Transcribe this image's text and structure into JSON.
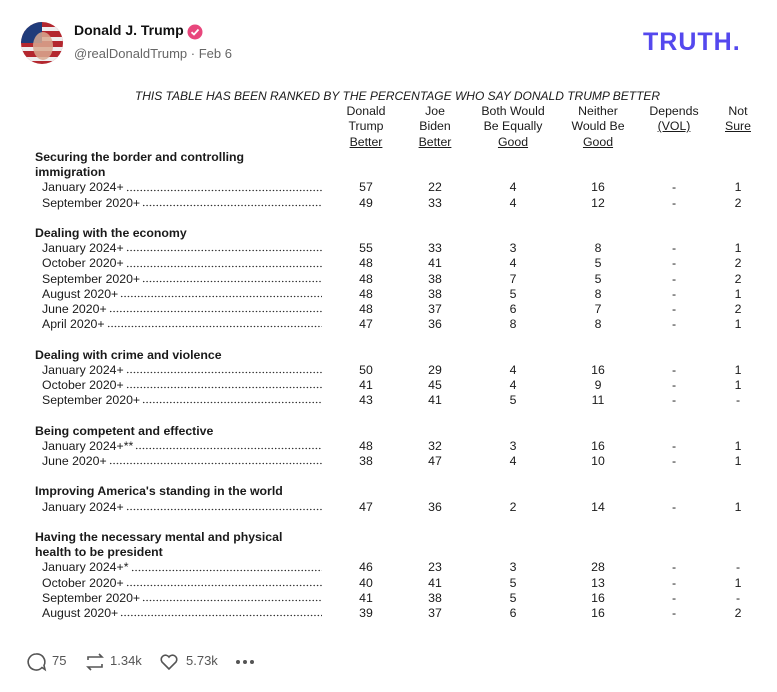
{
  "header": {
    "name": "Donald J. Trump",
    "handle": "@realDonaldTrump",
    "date": "Feb 6",
    "logo": "TRUTH."
  },
  "table": {
    "title": "THIS TABLE HAS BEEN RANKED BY THE PERCENTAGE WHO SAY DONALD TRUMP BETTER",
    "columns": [
      [
        "Donald",
        "Trump",
        "Better"
      ],
      [
        "Joe",
        "Biden",
        "Better"
      ],
      [
        "Both Would",
        "Be Equally",
        "Good"
      ],
      [
        "Neither",
        "Would Be",
        "Good"
      ],
      [
        "Depends",
        "(VOL)"
      ],
      [
        "Not",
        "Sure"
      ]
    ],
    "sections": [
      {
        "title": "Securing the border and controlling immigration",
        "rows": [
          {
            "label": "January 2024+",
            "cells": [
              57,
              22,
              4,
              16,
              "-",
              1
            ]
          },
          {
            "label": "September 2020+",
            "cells": [
              49,
              33,
              4,
              12,
              "-",
              2
            ]
          }
        ]
      },
      {
        "title": "Dealing with the economy",
        "rows": [
          {
            "label": "January 2024+",
            "cells": [
              55,
              33,
              3,
              8,
              "-",
              1
            ]
          },
          {
            "label": "October 2020+",
            "cells": [
              48,
              41,
              4,
              5,
              "-",
              2
            ]
          },
          {
            "label": "September 2020+",
            "cells": [
              48,
              38,
              7,
              5,
              "-",
              2
            ]
          },
          {
            "label": "August 2020+",
            "cells": [
              48,
              38,
              5,
              8,
              "-",
              1
            ]
          },
          {
            "label": "June 2020+",
            "cells": [
              48,
              37,
              6,
              7,
              "-",
              2
            ]
          },
          {
            "label": "April 2020+",
            "cells": [
              47,
              36,
              8,
              8,
              "-",
              1
            ]
          }
        ]
      },
      {
        "title": "Dealing with crime and violence",
        "rows": [
          {
            "label": "January 2024+",
            "cells": [
              50,
              29,
              4,
              16,
              "-",
              1
            ]
          },
          {
            "label": "October 2020+",
            "cells": [
              41,
              45,
              4,
              9,
              "-",
              1
            ]
          },
          {
            "label": "September 2020+",
            "cells": [
              43,
              41,
              5,
              11,
              "-",
              "-"
            ]
          }
        ]
      },
      {
        "title": "Being competent and effective",
        "rows": [
          {
            "label": "January 2024+**",
            "cells": [
              48,
              32,
              3,
              16,
              "-",
              1
            ]
          },
          {
            "label": "June 2020+",
            "cells": [
              38,
              47,
              4,
              10,
              "-",
              1
            ]
          }
        ]
      },
      {
        "title": "Improving America's standing in the world",
        "rows": [
          {
            "label": "January 2024+",
            "cells": [
              47,
              36,
              2,
              14,
              "-",
              1
            ]
          }
        ]
      },
      {
        "title": "Having the necessary mental and physical health to be president",
        "rows": [
          {
            "label": "January 2024+*",
            "cells": [
              46,
              23,
              3,
              28,
              "-",
              "-"
            ]
          },
          {
            "label": "October 2020+",
            "cells": [
              40,
              41,
              5,
              13,
              "-",
              1
            ]
          },
          {
            "label": "September 2020+",
            "cells": [
              41,
              38,
              5,
              16,
              "-",
              "-"
            ]
          },
          {
            "label": "August 2020+",
            "cells": [
              39,
              37,
              6,
              16,
              "-",
              2
            ]
          }
        ]
      }
    ]
  },
  "footer": {
    "replies": "75",
    "reposts": "1.34k",
    "likes": "5.73k"
  }
}
